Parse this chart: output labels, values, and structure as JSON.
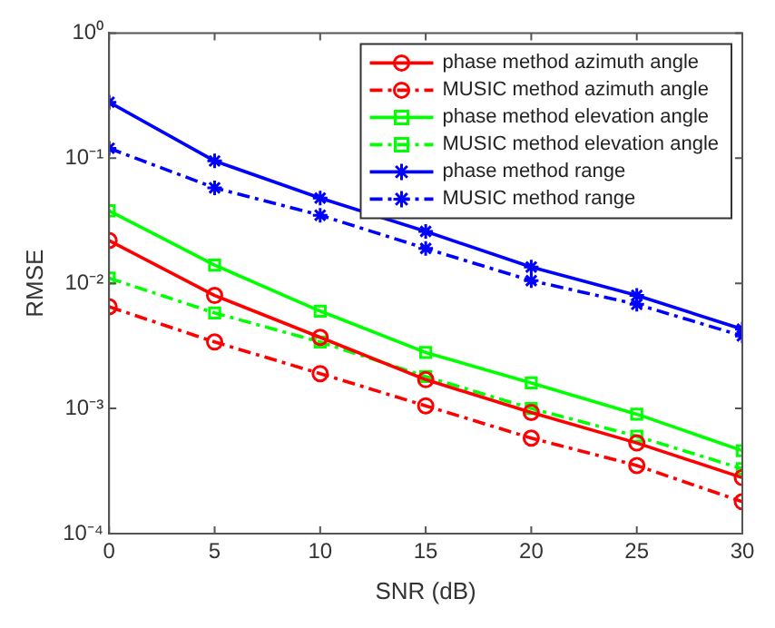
{
  "chart_data": {
    "type": "line",
    "xlabel": "SNR (dB)",
    "ylabel": "RMSE",
    "x": [
      0,
      5,
      10,
      15,
      20,
      25,
      30
    ],
    "series": [
      {
        "name": "phase method azimuth angle",
        "color": "#ff0000",
        "marker": "circle",
        "line_style": "solid",
        "values": [
          0.022,
          0.008,
          0.0037,
          0.0017,
          0.00093,
          0.00053,
          0.00028
        ]
      },
      {
        "name": "MUSIC method azimuth angle",
        "color": "#ff0000",
        "marker": "circle",
        "line_style": "dashed",
        "values": [
          0.0065,
          0.0034,
          0.0019,
          0.00105,
          0.00058,
          0.00035,
          0.00018
        ]
      },
      {
        "name": "phase method elevation angle",
        "color": "#00ff00",
        "marker": "square",
        "line_style": "solid",
        "values": [
          0.038,
          0.014,
          0.006,
          0.0028,
          0.0016,
          0.0009,
          0.00046
        ]
      },
      {
        "name": "MUSIC method elevation angle",
        "color": "#00ff00",
        "marker": "square",
        "line_style": "dashed",
        "values": [
          0.011,
          0.0058,
          0.0034,
          0.0018,
          0.001,
          0.0006,
          0.00033
        ]
      },
      {
        "name": "phase method range",
        "color": "#0000ff",
        "marker": "cross",
        "line_style": "solid",
        "values": [
          0.28,
          0.095,
          0.048,
          0.026,
          0.0135,
          0.008,
          0.0043
        ]
      },
      {
        "name": "MUSIC method range",
        "color": "#0000ff",
        "marker": "cross",
        "line_style": "dashed",
        "values": [
          0.12,
          0.058,
          0.035,
          0.019,
          0.0105,
          0.0068,
          0.0038
        ]
      }
    ],
    "log": "y",
    "xlim": [
      0,
      30
    ],
    "xticks": [
      0,
      5,
      10,
      15,
      20,
      25,
      30
    ],
    "ylim": [
      0.0001,
      1
    ],
    "yticks": [
      {
        "value": 0.0001,
        "label": "10⁻⁴"
      },
      {
        "value": 0.001,
        "label": "10⁻³"
      },
      {
        "value": 0.01,
        "label": "10⁻²"
      },
      {
        "value": 0.1,
        "label": "10⁻¹"
      },
      {
        "value": 1,
        "label": "10⁰"
      }
    ],
    "grid": false,
    "legend": "top right"
  }
}
